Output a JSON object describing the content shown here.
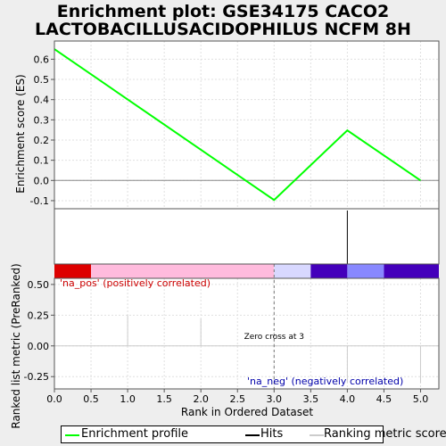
{
  "chart_data": {
    "type": "line",
    "title_line1": "Enrichment plot: GSE34175 CACO2",
    "title_line2": "LACTOBACILLUSACIDOPHILUS NCFM 8H",
    "xlabel": "Rank in Ordered Dataset",
    "top_ylabel": "Enrichment score (ES)",
    "bottom_ylabel": "Ranked list metric (PreRanked)",
    "xlim": [
      0,
      5.25
    ],
    "x_ticks": [
      "0.0",
      "0.5",
      "1.0",
      "1.5",
      "2.0",
      "2.5",
      "3.0",
      "3.5",
      "4.0",
      "4.5",
      "5.0"
    ],
    "es_ylim": [
      -0.14,
      0.69
    ],
    "es_ticks": [
      "0.6",
      "0.5",
      "0.4",
      "0.3",
      "0.2",
      "0.1",
      "0.0",
      "-0.1"
    ],
    "es_tick_values": [
      0.6,
      0.5,
      0.4,
      0.3,
      0.2,
      0.1,
      0.0,
      -0.1
    ],
    "es_series": {
      "name": "Enrichment profile",
      "x": [
        0,
        3,
        4,
        5
      ],
      "y": [
        0.65,
        -0.097,
        0.248,
        0.0
      ]
    },
    "hits": [
      0,
      4
    ],
    "metric_ylim": [
      -0.35,
      0.55
    ],
    "metric_ticks": [
      "0.50",
      "0.25",
      "0.00",
      "-0.25"
    ],
    "metric_tick_values": [
      0.5,
      0.25,
      0.0,
      -0.25
    ],
    "metric_scores": [
      {
        "x": 1,
        "y": 0.25
      },
      {
        "x": 2,
        "y": 0.22
      },
      {
        "x": 4,
        "y": -0.3
      },
      {
        "x": 5,
        "y": -0.3
      }
    ],
    "zero_cross_x": 3,
    "zero_cross_label": "Zero cross at 3",
    "pos_label": "'na_pos' (positively correlated)",
    "neg_label": "'na_neg' (negatively correlated)",
    "colorbar": [
      {
        "from": 0.0,
        "to": 0.5,
        "color": "#dd0000"
      },
      {
        "from": 0.5,
        "to": 3.0,
        "color": "#ffbbdd"
      },
      {
        "from": 3.0,
        "to": 3.5,
        "color": "#d8d8ff"
      },
      {
        "from": 3.5,
        "to": 4.0,
        "color": "#4400bb"
      },
      {
        "from": 4.0,
        "to": 4.5,
        "color": "#8888ff"
      },
      {
        "from": 4.5,
        "to": 5.25,
        "color": "#4400bb"
      }
    ],
    "colors": {
      "es_line": "#00ff00",
      "hits": "#000000",
      "metric": "#cccccc",
      "pos_label": "#cc0000",
      "neg_label": "#0000aa"
    }
  },
  "legend": {
    "enrichment_profile": "Enrichment profile",
    "hits": "Hits",
    "ranking_metric": "Ranking metric scores"
  }
}
